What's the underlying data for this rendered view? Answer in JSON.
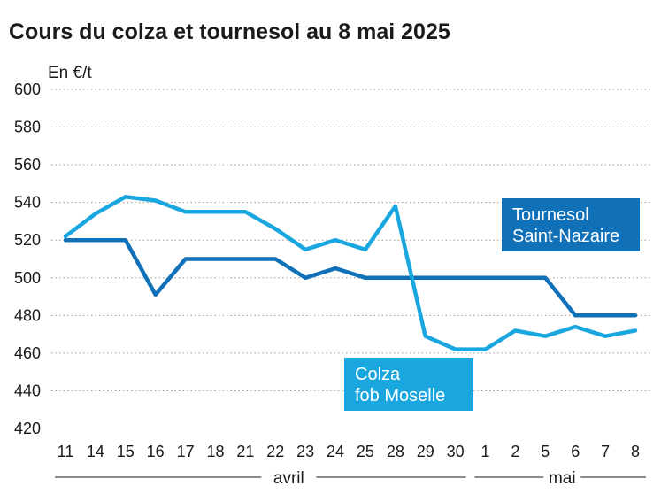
{
  "chart_data": {
    "type": "line",
    "title": "Cours du colza et tournesol au 8 mai 2025",
    "ylabel": "En €/t",
    "xlabel": "",
    "ylim": [
      420,
      600
    ],
    "yticks": [
      420,
      440,
      460,
      480,
      500,
      520,
      540,
      560,
      580,
      600
    ],
    "grid": true,
    "categories": [
      "11",
      "14",
      "15",
      "16",
      "17",
      "18",
      "21",
      "22",
      "23",
      "24",
      "25",
      "28",
      "29",
      "30",
      "1",
      "2",
      "5",
      "6",
      "7",
      "8"
    ],
    "month_groups": [
      {
        "label": "avril",
        "from": 0,
        "to": 13
      },
      {
        "label": "mai",
        "from": 14,
        "to": 19
      }
    ],
    "series": [
      {
        "label_lines": [
          "Tournesol",
          "Saint-Nazaire"
        ],
        "color": "#1070b8",
        "values": [
          520,
          520,
          520,
          491,
          510,
          510,
          510,
          510,
          500,
          505,
          500,
          500,
          500,
          500,
          500,
          500,
          500,
          480,
          480,
          480
        ]
      },
      {
        "label_lines": [
          "Colza",
          "fob Moselle"
        ],
        "color": "#1aa7e0",
        "values": [
          522,
          534,
          543,
          541,
          535,
          535,
          535,
          526,
          515,
          520,
          515,
          538,
          469,
          462,
          462,
          472,
          469,
          474,
          469,
          472
        ]
      }
    ]
  }
}
